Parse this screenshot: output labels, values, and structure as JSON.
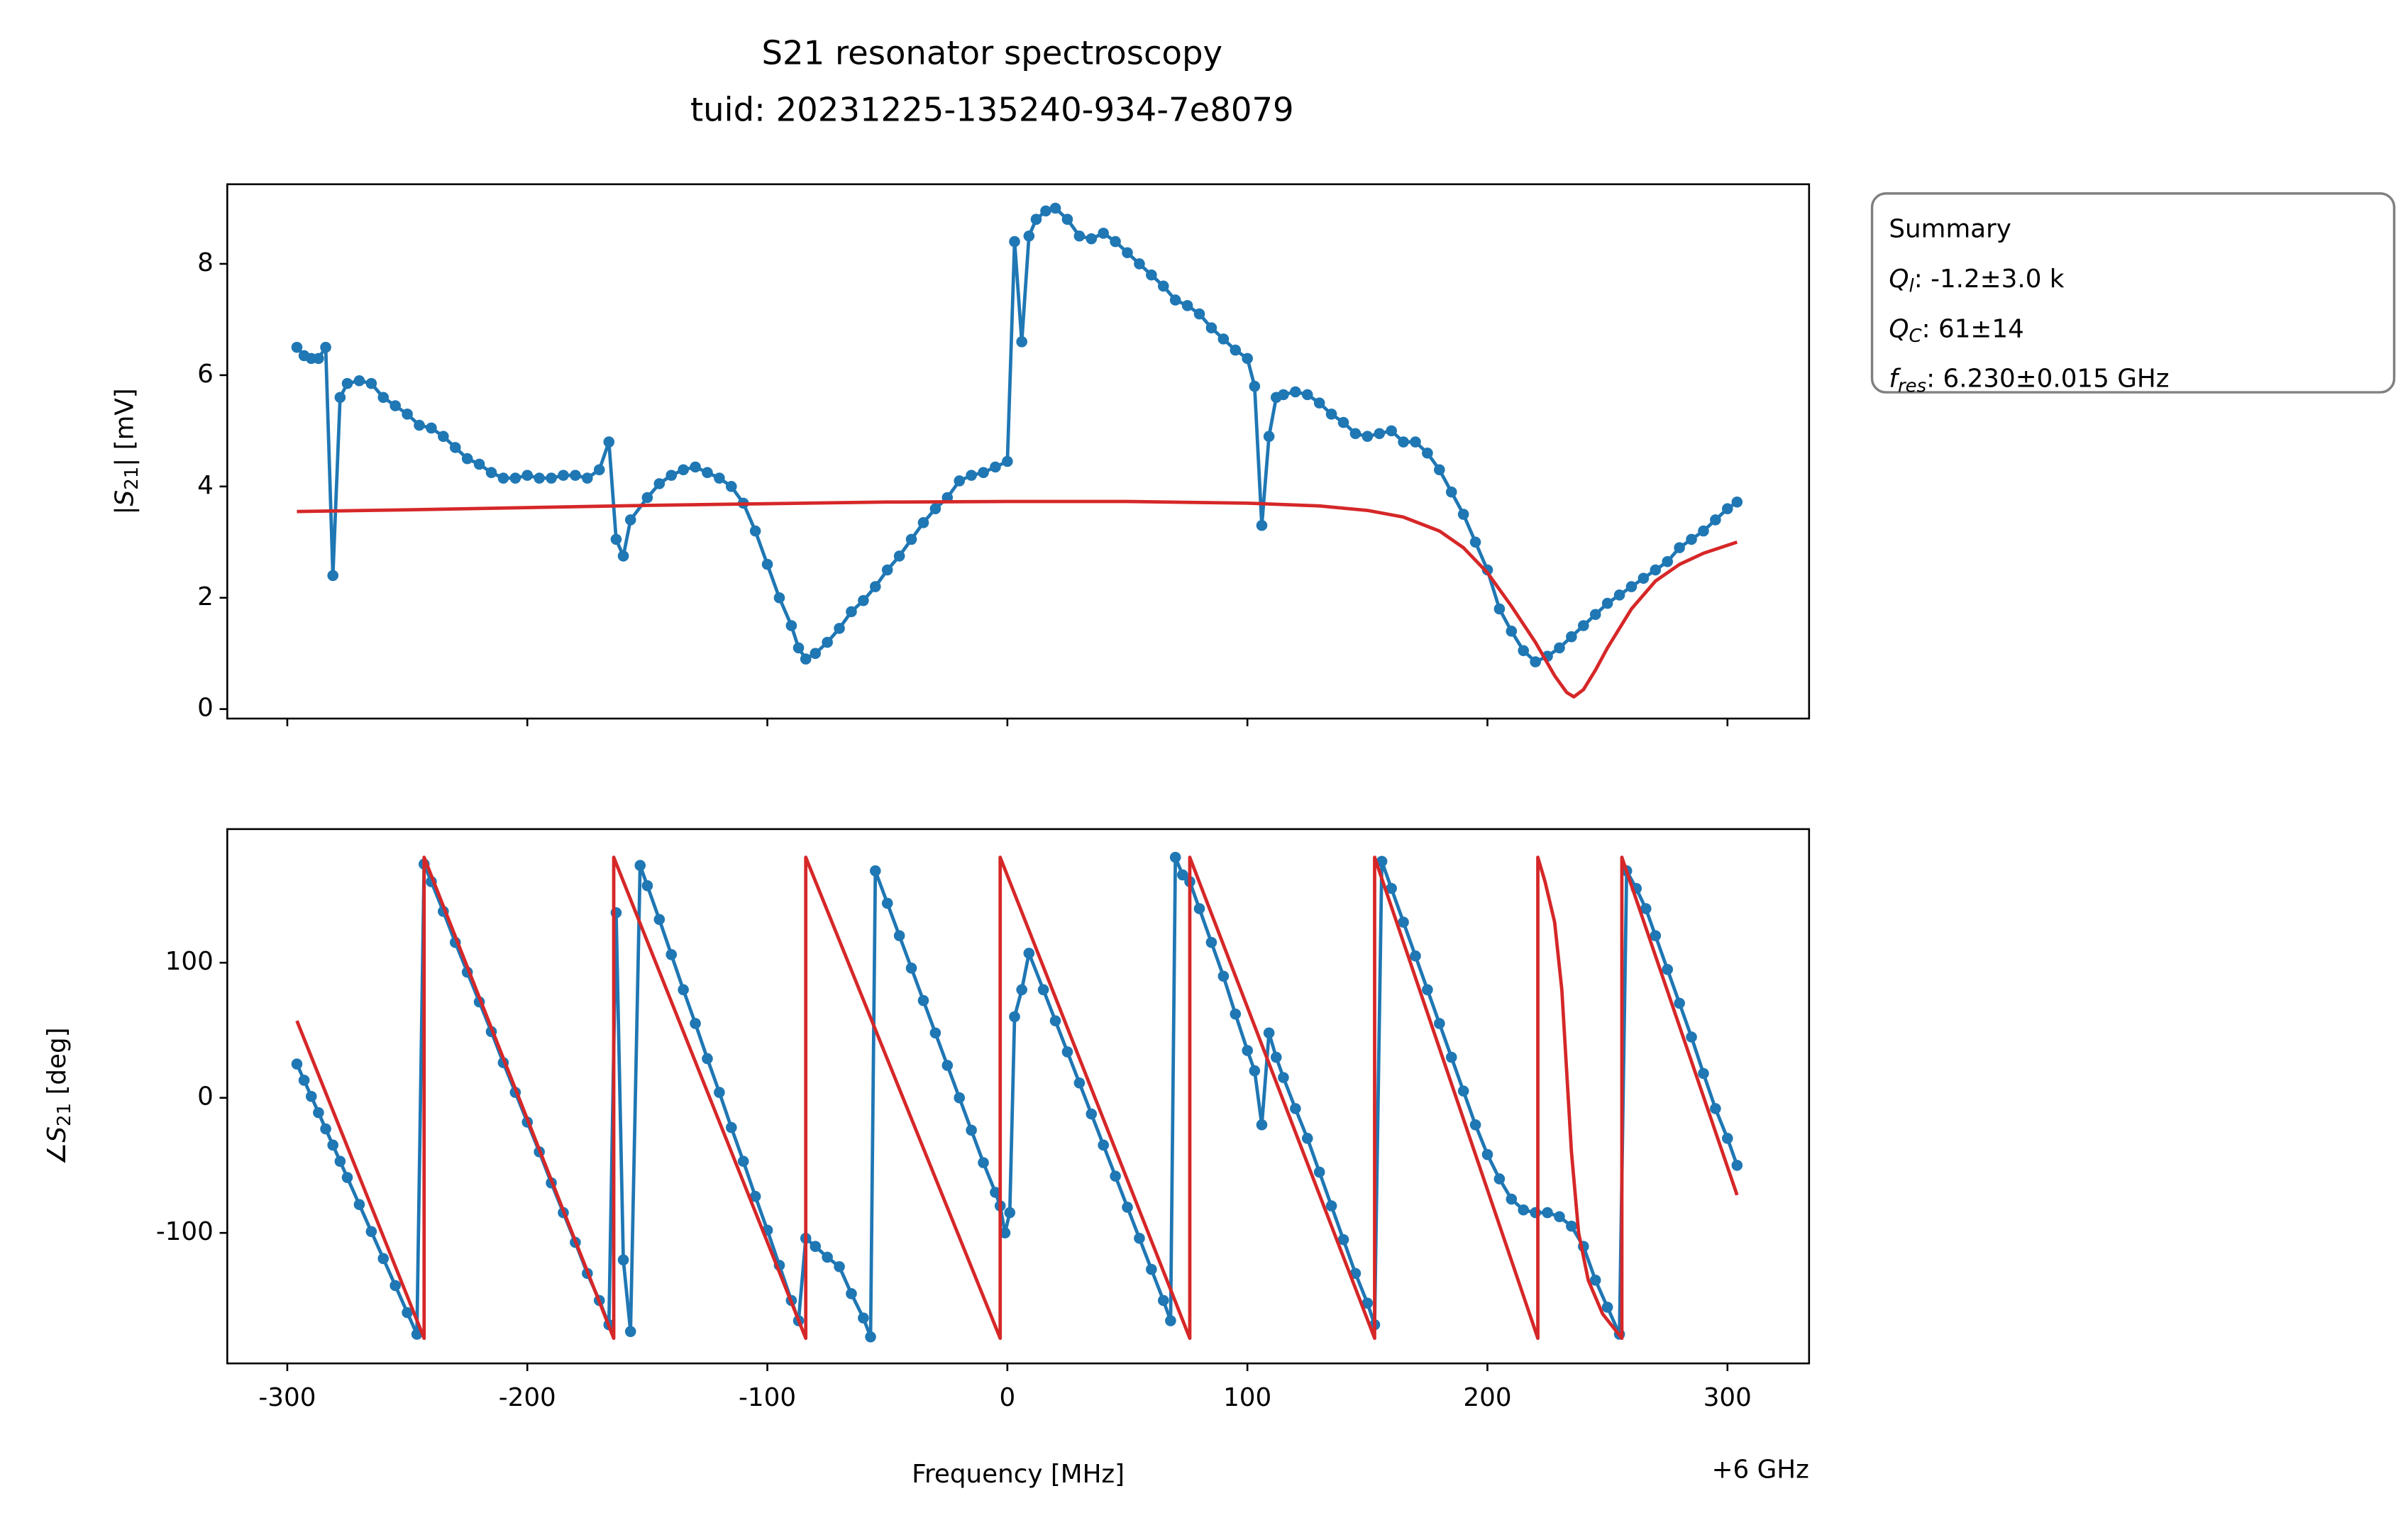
{
  "chart_data": [
    {
      "type": "line",
      "title": "S21 resonator spectroscopy",
      "subtitle": "tuid: 20231225-135240-934-7e8079",
      "ylabel": {
        "pre": "|",
        "symbol": "S",
        "sub": "21",
        "post": "| [mV]"
      },
      "xlim": [
        -325,
        334
      ],
      "ylim": [
        -0.17,
        9.43
      ],
      "xticks": [
        -300,
        -200,
        -100,
        0,
        100,
        200,
        300
      ],
      "xtick_labels": false,
      "yticks": [
        0,
        2,
        4,
        6,
        8
      ],
      "series": [
        {
          "color": "#1f77b4",
          "marker": true,
          "x": [
            -296,
            -293,
            -290,
            -287,
            -284,
            -281,
            -278,
            -275,
            -270,
            -265,
            -260,
            -255,
            -250,
            -245,
            -240,
            -235,
            -230,
            -225,
            -220,
            -215,
            -210,
            -205,
            -200,
            -195,
            -190,
            -185,
            -180,
            -175,
            -170,
            -166,
            -163,
            -160,
            -157,
            -150,
            -145,
            -140,
            -135,
            -130,
            -125,
            -120,
            -115,
            -110,
            -105,
            -100,
            -95,
            -90,
            -87,
            -84,
            -80,
            -75,
            -70,
            -65,
            -60,
            -55,
            -50,
            -45,
            -40,
            -35,
            -30,
            -25,
            -20,
            -15,
            -10,
            -5,
            0,
            3,
            6,
            9,
            12,
            16,
            20,
            25,
            30,
            35,
            40,
            45,
            50,
            55,
            60,
            65,
            70,
            75,
            80,
            85,
            90,
            95,
            100,
            103,
            106,
            109,
            112,
            115,
            120,
            125,
            130,
            135,
            140,
            145,
            150,
            155,
            160,
            165,
            170,
            175,
            180,
            185,
            190,
            195,
            200,
            205,
            210,
            215,
            220,
            225,
            230,
            235,
            240,
            245,
            250,
            255,
            260,
            265,
            270,
            275,
            280,
            285,
            290,
            295,
            300,
            304
          ],
          "values": [
            6.5,
            6.35,
            6.3,
            6.3,
            6.5,
            2.4,
            5.6,
            5.85,
            5.9,
            5.85,
            5.6,
            5.45,
            5.3,
            5.1,
            5.05,
            4.9,
            4.7,
            4.5,
            4.4,
            4.25,
            4.15,
            4.15,
            4.2,
            4.15,
            4.15,
            4.2,
            4.2,
            4.15,
            4.3,
            4.8,
            3.05,
            2.75,
            3.4,
            3.8,
            4.05,
            4.2,
            4.3,
            4.35,
            4.25,
            4.15,
            4.0,
            3.7,
            3.2,
            2.6,
            2.0,
            1.5,
            1.1,
            0.9,
            1.0,
            1.2,
            1.45,
            1.75,
            1.95,
            2.2,
            2.5,
            2.75,
            3.05,
            3.35,
            3.6,
            3.8,
            4.1,
            4.2,
            4.25,
            4.35,
            4.45,
            8.4,
            6.6,
            8.5,
            8.8,
            8.95,
            9.0,
            8.8,
            8.5,
            8.45,
            8.55,
            8.4,
            8.2,
            8.0,
            7.8,
            7.6,
            7.35,
            7.25,
            7.1,
            6.85,
            6.65,
            6.45,
            6.3,
            5.8,
            3.3,
            4.9,
            5.6,
            5.65,
            5.7,
            5.65,
            5.5,
            5.3,
            5.15,
            4.95,
            4.9,
            4.95,
            5.0,
            4.8,
            4.8,
            4.6,
            4.3,
            3.9,
            3.5,
            3.0,
            2.5,
            1.8,
            1.4,
            1.05,
            0.85,
            0.95,
            1.1,
            1.3,
            1.5,
            1.7,
            1.9,
            2.05,
            2.2,
            2.35,
            2.5,
            2.65,
            2.9,
            3.05,
            3.2,
            3.4,
            3.6,
            3.72
          ]
        },
        {
          "color": "#d62728",
          "marker": false,
          "x": [
            -296,
            -250,
            -200,
            -150,
            -100,
            -50,
            0,
            50,
            100,
            130,
            150,
            165,
            180,
            190,
            200,
            210,
            220,
            228,
            233,
            236,
            240,
            245,
            250,
            260,
            270,
            280,
            290,
            304
          ],
          "values": [
            3.55,
            3.58,
            3.62,
            3.66,
            3.69,
            3.72,
            3.73,
            3.73,
            3.7,
            3.65,
            3.57,
            3.45,
            3.2,
            2.9,
            2.45,
            1.85,
            1.2,
            0.6,
            0.3,
            0.22,
            0.35,
            0.7,
            1.1,
            1.8,
            2.3,
            2.6,
            2.8,
            3.0
          ]
        }
      ],
      "summary": {
        "title": "Summary",
        "lines": [
          {
            "symbol": "Q",
            "sub": "l",
            "post": ": -1.2±3.0 k"
          },
          {
            "symbol": "Q",
            "sub": "C",
            "post": ": 61±14"
          },
          {
            "symbol": "f",
            "sub": "res",
            "post": ": 6.230±0.015 GHz"
          }
        ]
      }
    },
    {
      "type": "line",
      "ylabel": {
        "pre": "∠",
        "symbol": "S",
        "sub": "21",
        "post": " [deg]"
      },
      "xlabel": "Frequency [MHz]",
      "x_offset_label": "+6 GHz",
      "xlim": [
        -325,
        334
      ],
      "ylim": [
        -196.6,
        198.9
      ],
      "xticks": [
        -300,
        -200,
        -100,
        0,
        100,
        200,
        300
      ],
      "xtick_labels": true,
      "yticks": [
        -100,
        0,
        100
      ],
      "series": [
        {
          "color": "#1f77b4",
          "marker": true,
          "x": [
            -296,
            -293,
            -290,
            -287,
            -284,
            -281,
            -278,
            -275,
            -270,
            -265,
            -260,
            -255,
            -250,
            -246,
            -243,
            -240,
            -235,
            -230,
            -225,
            -220,
            -215,
            -210,
            -205,
            -200,
            -195,
            -190,
            -185,
            -180,
            -175,
            -170,
            -166,
            -163,
            -160,
            -157,
            -153,
            -150,
            -145,
            -140,
            -135,
            -130,
            -125,
            -120,
            -115,
            -110,
            -105,
            -100,
            -95,
            -90,
            -87,
            -84,
            -80,
            -75,
            -70,
            -65,
            -60,
            -57,
            -55,
            -50,
            -45,
            -40,
            -35,
            -30,
            -25,
            -20,
            -15,
            -10,
            -5,
            -3,
            -1,
            1,
            3,
            6,
            9,
            15,
            20,
            25,
            30,
            35,
            40,
            45,
            50,
            55,
            60,
            65,
            68,
            70,
            73,
            76,
            80,
            85,
            90,
            95,
            100,
            103,
            106,
            109,
            112,
            115,
            120,
            125,
            130,
            135,
            140,
            145,
            150,
            153,
            156,
            160,
            165,
            170,
            175,
            180,
            185,
            190,
            195,
            200,
            205,
            210,
            215,
            220,
            225,
            230,
            235,
            240,
            245,
            250,
            255,
            258,
            262,
            266,
            270,
            275,
            280,
            285,
            290,
            295,
            300,
            304
          ],
          "values": [
            25,
            13,
            1,
            -11,
            -23,
            -35,
            -47,
            -59,
            -79,
            -99,
            -119,
            -139,
            -159,
            -175,
            173,
            160,
            138,
            115,
            93,
            71,
            49,
            26,
            4,
            -18,
            -40,
            -63,
            -85,
            -107,
            -130,
            -150,
            -168,
            137,
            -120,
            -173,
            172,
            157,
            132,
            106,
            80,
            55,
            29,
            4,
            -22,
            -47,
            -73,
            -98,
            -124,
            -150,
            -165,
            -104,
            -110,
            -118,
            -125,
            -145,
            -163,
            -177,
            168,
            144,
            120,
            96,
            72,
            48,
            24,
            0,
            -24,
            -48,
            -70,
            -80,
            -100,
            -85,
            60,
            80,
            107,
            80,
            57,
            34,
            11,
            -12,
            -35,
            -58,
            -81,
            -104,
            -127,
            -150,
            -165,
            178,
            165,
            160,
            140,
            115,
            90,
            62,
            35,
            20,
            -20,
            48,
            30,
            15,
            -8,
            -30,
            -55,
            -80,
            -105,
            -130,
            -152,
            -168,
            175,
            155,
            130,
            105,
            80,
            55,
            30,
            5,
            -20,
            -42,
            -60,
            -75,
            -83,
            -85,
            -85,
            -88,
            -95,
            -110,
            -135,
            -155,
            -175,
            168,
            155,
            140,
            120,
            95,
            70,
            45,
            18,
            -8,
            -30,
            -50
          ]
        },
        {
          "color": "#d62728",
          "marker": false,
          "x": [
            -296,
            -243,
            -243,
            -164,
            -164,
            -84,
            -84,
            -3,
            -3,
            76,
            76,
            153,
            153,
            221,
            221,
            224,
            228,
            231,
            233,
            235,
            238,
            242,
            248,
            256,
            256,
            304
          ],
          "values": [
            57,
            -178,
            178,
            -178,
            178,
            -178,
            178,
            -178,
            178,
            -178,
            178,
            -178,
            178,
            -178,
            178,
            160,
            130,
            80,
            20,
            -40,
            -100,
            -135,
            -160,
            -178,
            178,
            -72
          ]
        }
      ]
    }
  ]
}
